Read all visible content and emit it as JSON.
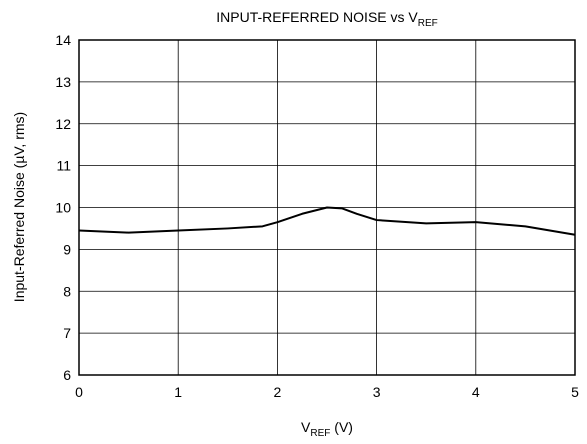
{
  "chart_data": {
    "type": "line",
    "title": {
      "text": "INPUT-REFERRED NOISE vs V",
      "sub": "REF"
    },
    "xlabel": {
      "text": "V",
      "sub": "REF",
      "after": " (V)"
    },
    "ylabel": "Input-Referred Noise (µV, rms)",
    "x": [
      0,
      0.5,
      1,
      1.5,
      1.85,
      2,
      2.25,
      2.5,
      2.65,
      2.8,
      3,
      3.5,
      4,
      4.5,
      5
    ],
    "series": [
      {
        "name": "Noise",
        "color": "#000000",
        "values": [
          9.45,
          9.4,
          9.45,
          9.5,
          9.55,
          9.65,
          9.85,
          10.0,
          9.98,
          9.85,
          9.7,
          9.62,
          9.65,
          9.55,
          9.35
        ]
      }
    ],
    "xlim": [
      0,
      5
    ],
    "xticks": [
      0,
      1,
      2,
      3,
      4,
      5
    ],
    "ylim": [
      6,
      14
    ],
    "yticks": [
      6,
      7,
      8,
      9,
      10,
      11,
      12,
      13,
      14
    ],
    "grid": true
  }
}
